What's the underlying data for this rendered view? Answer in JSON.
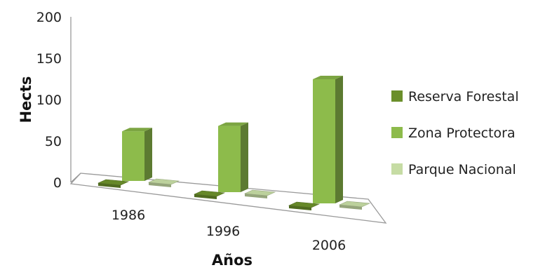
{
  "chart_data": {
    "type": "bar",
    "style": "3d-column",
    "categories": [
      "1986",
      "1996",
      "2006"
    ],
    "series": [
      {
        "name": "Reserva Forestal",
        "values": [
          0,
          0,
          0
        ],
        "color": "#6b8f2b"
      },
      {
        "name": "Zona Protectora",
        "values": [
          60,
          80,
          150
        ],
        "color": "#8dbb4b"
      },
      {
        "name": "Parque Nacional",
        "values": [
          0,
          0,
          0
        ],
        "color": "#c6dca4"
      }
    ],
    "title": "",
    "xlabel": "Años",
    "ylabel": "Hects",
    "ylim": [
      0,
      200
    ],
    "yticks": [
      "0",
      "50",
      "100",
      "150",
      "200"
    ],
    "legend_position": "right",
    "grid": false
  }
}
